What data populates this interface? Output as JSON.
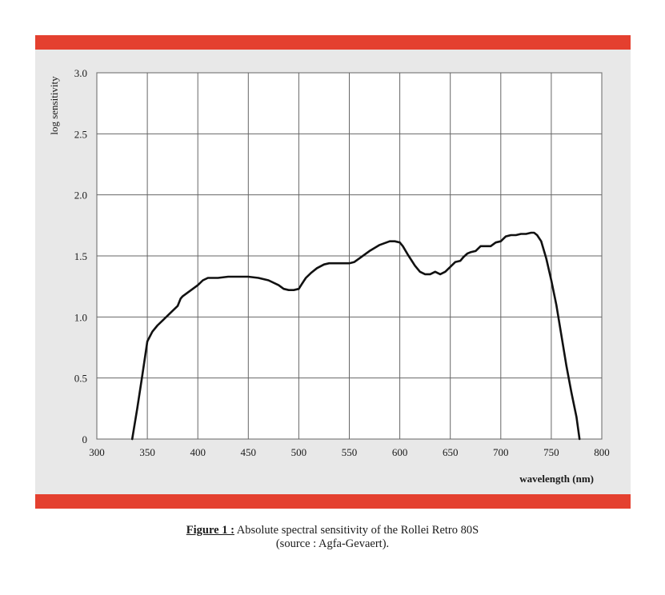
{
  "chart_data": {
    "type": "line",
    "ylabel": "log sensitivity",
    "xlabel": "wavelength (nm)",
    "xlim": [
      300,
      800
    ],
    "ylim": [
      0,
      3.0
    ],
    "x_ticks": [
      300,
      350,
      400,
      450,
      500,
      550,
      600,
      650,
      700,
      750,
      800
    ],
    "x_tick_labels": [
      "300",
      "350",
      "400",
      "450",
      "500",
      "550",
      "600",
      "650",
      "700",
      "750",
      "800"
    ],
    "y_ticks": [
      0,
      0.5,
      1.0,
      1.5,
      2.0,
      2.5,
      3.0
    ],
    "y_tick_labels": [
      "0",
      "0.5",
      "1.0",
      "1.5",
      "2.0",
      "2.5",
      "3.0"
    ],
    "grid": true,
    "series": [
      {
        "x": [
          335,
          340,
          345,
          350,
          355,
          360,
          365,
          370,
          375,
          380,
          383,
          385,
          390,
          395,
          400,
          405,
          410,
          420,
          430,
          440,
          450,
          460,
          470,
          480,
          485,
          490,
          495,
          500,
          503,
          507,
          512,
          518,
          525,
          530,
          540,
          550,
          555,
          560,
          570,
          580,
          590,
          595,
          600,
          603,
          608,
          615,
          620,
          625,
          630,
          635,
          640,
          645,
          650,
          655,
          660,
          663,
          667,
          670,
          675,
          680,
          685,
          690,
          695,
          700,
          705,
          710,
          715,
          720,
          725,
          730,
          733,
          736,
          740,
          745,
          750,
          755,
          760,
          765,
          770,
          775,
          778
        ],
        "y": [
          0,
          0.25,
          0.52,
          0.8,
          0.88,
          0.93,
          0.97,
          1.01,
          1.05,
          1.09,
          1.15,
          1.17,
          1.2,
          1.23,
          1.26,
          1.3,
          1.32,
          1.32,
          1.33,
          1.33,
          1.33,
          1.32,
          1.3,
          1.26,
          1.23,
          1.22,
          1.22,
          1.23,
          1.27,
          1.32,
          1.36,
          1.4,
          1.43,
          1.44,
          1.44,
          1.44,
          1.45,
          1.48,
          1.54,
          1.59,
          1.62,
          1.62,
          1.61,
          1.58,
          1.51,
          1.42,
          1.37,
          1.35,
          1.35,
          1.37,
          1.35,
          1.37,
          1.41,
          1.45,
          1.46,
          1.49,
          1.52,
          1.53,
          1.54,
          1.58,
          1.58,
          1.58,
          1.61,
          1.62,
          1.66,
          1.67,
          1.67,
          1.68,
          1.68,
          1.69,
          1.69,
          1.67,
          1.62,
          1.48,
          1.3,
          1.1,
          0.85,
          0.6,
          0.38,
          0.18,
          0
        ]
      }
    ]
  },
  "caption": {
    "label": "Figure 1 :",
    "text": " Absolute spectral sensitivity of the Rollei Retro 80S",
    "source": "(source : Agfa-Gevaert)."
  }
}
